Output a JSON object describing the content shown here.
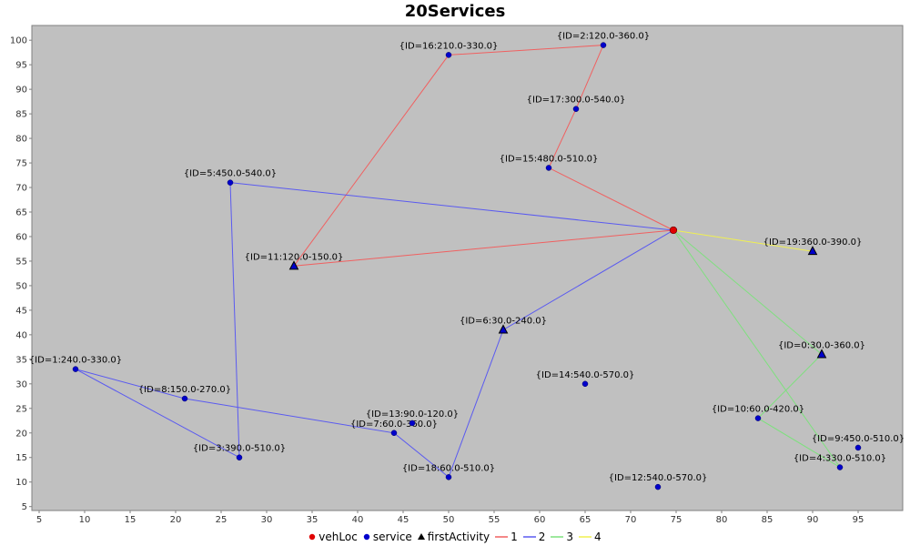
{
  "chart_data": {
    "type": "scatter",
    "title": "20Services",
    "xlabel": "",
    "ylabel": "",
    "xlim": [
      4.2,
      99.9
    ],
    "ylim": [
      4.2,
      103.0
    ],
    "x_ticks": [
      5,
      10,
      15,
      20,
      25,
      30,
      35,
      40,
      45,
      50,
      55,
      60,
      65,
      70,
      75,
      80,
      85,
      90,
      95
    ],
    "y_ticks": [
      5,
      10,
      15,
      20,
      25,
      30,
      35,
      40,
      45,
      50,
      55,
      60,
      65,
      70,
      75,
      80,
      85,
      90,
      95,
      100
    ],
    "background": "#c0c0c0",
    "grid": false,
    "legend_position": "bottom",
    "vehicle_location": {
      "x": 74.7,
      "y": 61.3,
      "color": "#e00000"
    },
    "services": [
      {
        "label": "{ID=0:30.0-360.0}",
        "x": 91,
        "y": 36,
        "first_activity": true
      },
      {
        "label": "{ID=1:240.0-330.0}",
        "x": 9,
        "y": 33,
        "first_activity": false
      },
      {
        "label": "{ID=2:120.0-360.0}",
        "x": 67,
        "y": 99,
        "first_activity": false
      },
      {
        "label": "{ID=3:390.0-510.0}",
        "x": 27,
        "y": 15,
        "first_activity": false
      },
      {
        "label": "{ID=4:330.0-510.0}",
        "x": 93,
        "y": 13,
        "first_activity": false
      },
      {
        "label": "{ID=5:450.0-540.0}",
        "x": 26,
        "y": 71,
        "first_activity": false
      },
      {
        "label": "{ID=6:30.0-240.0}",
        "x": 56,
        "y": 41,
        "first_activity": true
      },
      {
        "label": "{ID=7:60.0-360.0}",
        "x": 44,
        "y": 20,
        "first_activity": false
      },
      {
        "label": "{ID=8:150.0-270.0}",
        "x": 21,
        "y": 27,
        "first_activity": false
      },
      {
        "label": "{ID=9:450.0-510.0}",
        "x": 95,
        "y": 17,
        "first_activity": false
      },
      {
        "label": "{ID=10:60.0-420.0}",
        "x": 84,
        "y": 23,
        "first_activity": false
      },
      {
        "label": "{ID=11:120.0-150.0}",
        "x": 33,
        "y": 54,
        "first_activity": true
      },
      {
        "label": "{ID=12:540.0-570.0}",
        "x": 73,
        "y": 9,
        "first_activity": false
      },
      {
        "label": "{ID=13:90.0-120.0}",
        "x": 46,
        "y": 22,
        "first_activity": false
      },
      {
        "label": "{ID=14:540.0-570.0}",
        "x": 65,
        "y": 30,
        "first_activity": false
      },
      {
        "label": "{ID=15:480.0-510.0}",
        "x": 61,
        "y": 74,
        "first_activity": false
      },
      {
        "label": "{ID=16:210.0-330.0}",
        "x": 50,
        "y": 97,
        "first_activity": false
      },
      {
        "label": "{ID=17:300.0-540.0}",
        "x": 64,
        "y": 86,
        "first_activity": false
      },
      {
        "label": "{ID=18:60.0-510.0}",
        "x": 50,
        "y": 11,
        "first_activity": false
      },
      {
        "label": "{ID=19:360.0-390.0}",
        "x": 90,
        "y": 57,
        "first_activity": true
      }
    ],
    "routes": [
      {
        "name": "1",
        "color": "#f06060",
        "points": [
          [
            74.7,
            61.3
          ],
          [
            33,
            54
          ],
          [
            50,
            97
          ],
          [
            67,
            99
          ],
          [
            64,
            86
          ],
          [
            61,
            74
          ],
          [
            74.7,
            61.3
          ]
        ]
      },
      {
        "name": "2",
        "color": "#5a5af0",
        "points": [
          [
            74.7,
            61.3
          ],
          [
            56,
            41
          ],
          [
            50,
            11
          ],
          [
            44,
            20
          ],
          [
            21,
            27
          ],
          [
            9,
            33
          ],
          [
            27,
            15
          ],
          [
            26,
            71
          ],
          [
            74.7,
            61.3
          ]
        ]
      },
      {
        "name": "3",
        "color": "#7ee07e",
        "points": [
          [
            74.7,
            61.3
          ],
          [
            91,
            36
          ],
          [
            84,
            23
          ],
          [
            93,
            13
          ],
          [
            74.7,
            61.3
          ]
        ]
      },
      {
        "name": "4",
        "color": "#f0f050",
        "points": [
          [
            74.7,
            61.3
          ],
          [
            90,
            57
          ]
        ]
      }
    ],
    "legend": [
      {
        "label": "vehLoc",
        "marker": "circle",
        "color": "#e00000"
      },
      {
        "label": "service",
        "marker": "circle",
        "color": "#0000cc"
      },
      {
        "label": "firstActivity",
        "marker": "triangle",
        "color": "#000000"
      },
      {
        "label": "1",
        "marker": "line",
        "color": "#f06060"
      },
      {
        "label": "2",
        "marker": "line",
        "color": "#5a5af0"
      },
      {
        "label": "3",
        "marker": "line",
        "color": "#7ee07e"
      },
      {
        "label": "4",
        "marker": "line",
        "color": "#f0f050"
      }
    ]
  }
}
